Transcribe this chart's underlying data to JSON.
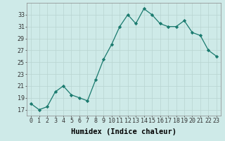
{
  "x": [
    0,
    1,
    2,
    3,
    4,
    5,
    6,
    7,
    8,
    9,
    10,
    11,
    12,
    13,
    14,
    15,
    16,
    17,
    18,
    19,
    20,
    21,
    22,
    23
  ],
  "y": [
    18,
    17,
    17.5,
    20,
    21,
    19.5,
    19,
    18.5,
    22,
    25.5,
    28,
    31,
    33,
    31.5,
    34,
    33,
    31.5,
    31,
    31,
    32,
    30,
    29.5,
    27,
    26
  ],
  "xlabel": "Humidex (Indice chaleur)",
  "xlim": [
    -0.5,
    23.5
  ],
  "ylim": [
    16,
    35
  ],
  "yticks": [
    17,
    19,
    21,
    23,
    25,
    27,
    29,
    31,
    33
  ],
  "xticks": [
    0,
    1,
    2,
    3,
    4,
    5,
    6,
    7,
    8,
    9,
    10,
    11,
    12,
    13,
    14,
    15,
    16,
    17,
    18,
    19,
    20,
    21,
    22,
    23
  ],
  "line_color": "#1a7a6e",
  "marker": "D",
  "marker_size": 2.2,
  "background_color": "#ceeae8",
  "grid_color": "#b8d4d0",
  "xlabel_fontsize": 7.5,
  "tick_fontsize": 6.0
}
